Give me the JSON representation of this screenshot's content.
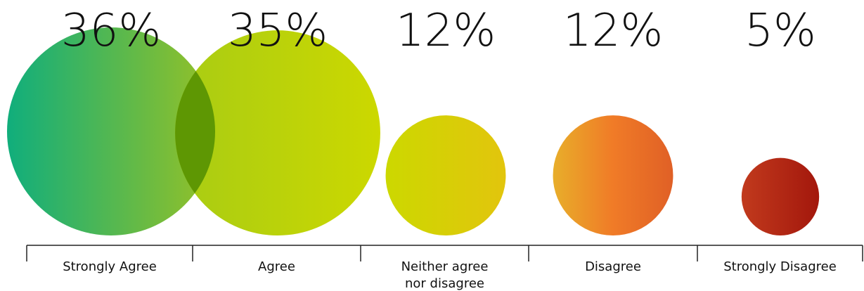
{
  "chart_data": {
    "type": "bubble",
    "title": "",
    "xlabel": "",
    "ylabel": "",
    "grid": false,
    "legend": "none",
    "categories": [
      [
        "Strongly Agree"
      ],
      [
        "Agree"
      ],
      [
        "Neither agree",
        "nor disagree"
      ],
      [
        "Disagree"
      ],
      [
        "Strongly Disagree"
      ]
    ],
    "values": [
      36,
      35,
      12,
      12,
      5
    ],
    "value_labels": [
      "36%",
      "35%",
      "12%",
      "12%",
      "5%"
    ],
    "colors": [
      [
        "#10ae7c",
        "#97c126"
      ],
      [
        "#a8cc14",
        "#ccd800"
      ],
      [
        "#ccd800",
        "#e2c50d"
      ],
      [
        "#e8ae2a",
        "#f07b27",
        "#e06026"
      ],
      [
        "#c13a1d",
        "#a3170c"
      ]
    ],
    "overlap_color": "#5e9703"
  }
}
